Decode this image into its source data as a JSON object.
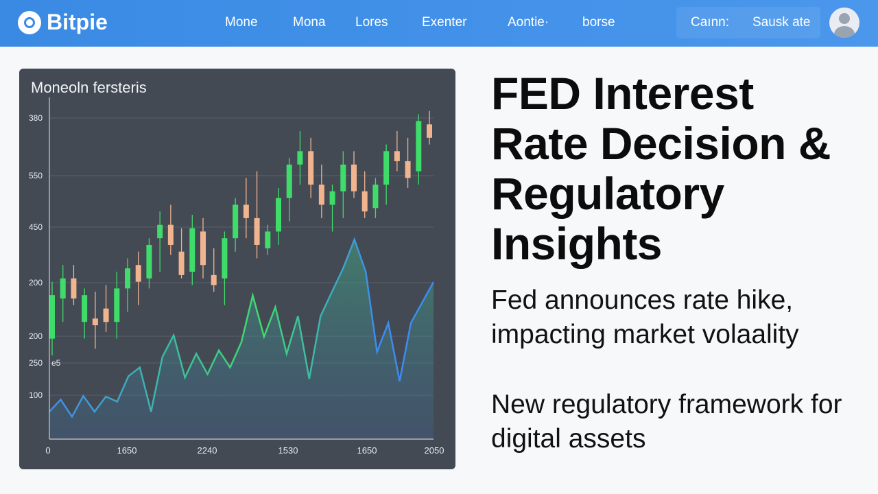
{
  "header": {
    "logo": "Bitpie",
    "nav": [
      "Mone",
      "Mona",
      "Lores",
      "Exenter",
      "Aontie·",
      "borse"
    ],
    "actions": [
      "Caınn:",
      "Sausk ate"
    ]
  },
  "chart": {
    "title": "Moneoln fersteris",
    "y_labels": [
      "380",
      "550",
      "450",
      "200",
      "200",
      "250",
      "100"
    ],
    "extra_label": "e5",
    "x_labels": [
      "0",
      "1650",
      "2240",
      "1530",
      "1650",
      "2050"
    ],
    "ylim": [
      0,
      100
    ],
    "up_color": "#3fdc6a",
    "down_color": "#f0b48e",
    "line_start_color": "#3d8cf0",
    "line_mid_color": "#3fdc6a",
    "candles": [
      [
        30,
        47,
        25,
        43
      ],
      [
        42,
        52,
        35,
        48
      ],
      [
        48,
        52,
        40,
        42
      ],
      [
        35,
        45,
        30,
        43
      ],
      [
        36,
        44,
        27,
        34
      ],
      [
        39,
        46,
        32,
        35
      ],
      [
        35,
        50,
        30,
        45
      ],
      [
        45,
        54,
        38,
        51
      ],
      [
        52,
        56,
        40,
        47
      ],
      [
        48,
        60,
        45,
        58
      ],
      [
        60,
        68,
        50,
        64
      ],
      [
        64,
        70,
        55,
        58
      ],
      [
        56,
        63,
        48,
        49
      ],
      [
        50,
        67,
        46,
        63
      ],
      [
        62,
        66,
        48,
        52
      ],
      [
        49,
        57,
        44,
        46
      ],
      [
        48,
        62,
        40,
        60
      ],
      [
        60,
        72,
        56,
        70
      ],
      [
        70,
        78,
        60,
        66
      ],
      [
        66,
        80,
        54,
        58
      ],
      [
        57,
        64,
        55,
        62
      ],
      [
        62,
        75,
        58,
        72
      ],
      [
        72,
        84,
        65,
        82
      ],
      [
        82,
        92,
        76,
        86
      ],
      [
        86,
        90,
        72,
        76
      ],
      [
        76,
        82,
        66,
        70
      ],
      [
        70,
        76,
        62,
        74
      ],
      [
        74,
        86,
        66,
        82
      ],
      [
        82,
        86,
        72,
        74
      ],
      [
        74,
        80,
        66,
        68
      ],
      [
        69,
        78,
        66,
        76
      ],
      [
        76,
        88,
        70,
        86
      ],
      [
        86,
        92,
        80,
        83
      ],
      [
        83,
        90,
        75,
        78
      ],
      [
        80,
        97,
        76,
        95
      ],
      [
        94,
        98,
        88,
        90
      ]
    ],
    "line": [
      8.2,
      11.8,
      6.7,
      12.9,
      8.2,
      12.7,
      11.2,
      18.8,
      21.4,
      8.2,
      24.5,
      31.0,
      18.4,
      25.5,
      19.4,
      26.5,
      21.4,
      29.0,
      42.9,
      30.6,
      39.4,
      25.5,
      36.7,
      18.0,
      36.7,
      43.9,
      51.0,
      59.6,
      50.0,
      26.1,
      34.7,
      17.3,
      34.7,
      40.8,
      46.9
    ]
  },
  "article": {
    "headline": "FED Interest Rate Decision & Regulatory Insights",
    "points": [
      "Fed announces rate hike, impacting market volaality",
      "New regulatory framework for digital assets"
    ]
  }
}
